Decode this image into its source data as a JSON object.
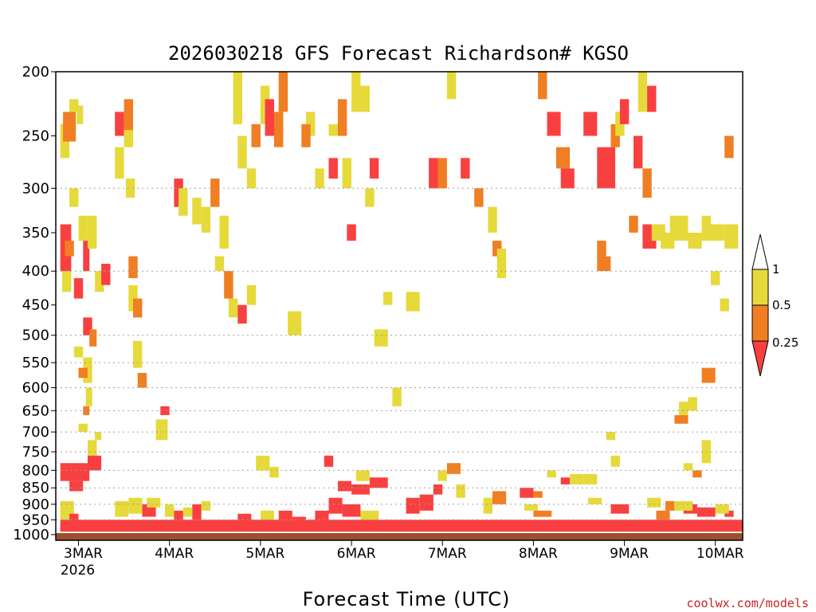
{
  "colors": {
    "ri_0_025": "#f84040",
    "ri_025_05": "#f07e22",
    "ri_05_1": "#e6d93a",
    "ground": "#9a4f2e",
    "grid": "#a0a0a0"
  },
  "chart_data": {
    "type": "heatmap",
    "title": "2026030218 GFS Forecast Richardson# KGSO",
    "xlabel": "Forecast Time (UTC)",
    "ylabel": "",
    "source_label": "coolwx.com/models",
    "x_ticks": [
      {
        "label": "3MAR",
        "sub": "2026",
        "day": 3
      },
      {
        "label": "4MAR",
        "sub": "",
        "day": 4
      },
      {
        "label": "5MAR",
        "sub": "",
        "day": 5
      },
      {
        "label": "6MAR",
        "sub": "",
        "day": 6
      },
      {
        "label": "7MAR",
        "sub": "",
        "day": 7
      },
      {
        "label": "8MAR",
        "sub": "",
        "day": 8
      },
      {
        "label": "9MAR",
        "sub": "",
        "day": 9
      },
      {
        "label": "10MAR",
        "sub": "",
        "day": 10
      }
    ],
    "x_range_days": [
      2.75,
      10.3
    ],
    "y_scale": "log",
    "y_range_hpa": [
      1020,
      200
    ],
    "y_ticks": [
      200,
      250,
      300,
      350,
      400,
      450,
      500,
      550,
      600,
      650,
      700,
      750,
      800,
      850,
      900,
      950,
      1000
    ],
    "grid_levels": [
      300,
      400,
      500,
      550,
      600,
      650,
      700,
      750,
      800,
      850,
      900,
      950
    ],
    "legend": {
      "bins": [
        {
          "range": "0-0.25",
          "color": "#f84040"
        },
        {
          "range": "0.25-0.5",
          "color": "#f07e22"
        },
        {
          "range": "0.5-1",
          "color": "#e6d93a"
        }
      ],
      "labels": [
        "1",
        "0.5",
        "0.25"
      ]
    },
    "cells": [
      [
        2.8,
        2.92,
        340,
        400,
        "r"
      ],
      [
        2.8,
        2.9,
        240,
        270,
        "y"
      ],
      [
        2.82,
        2.92,
        400,
        430,
        "y"
      ],
      [
        2.85,
        2.95,
        360,
        380,
        "o"
      ],
      [
        2.9,
        3.0,
        300,
        320,
        "y"
      ],
      [
        2.95,
        3.05,
        410,
        440,
        "r"
      ],
      [
        3.0,
        3.1,
        330,
        360,
        "y"
      ],
      [
        3.05,
        3.12,
        360,
        400,
        "r"
      ],
      [
        2.83,
        2.97,
        230,
        255,
        "o"
      ],
      [
        2.9,
        3.0,
        220,
        230,
        "y"
      ],
      [
        2.98,
        3.05,
        225,
        240,
        "y"
      ],
      [
        3.1,
        3.2,
        330,
        370,
        "y"
      ],
      [
        3.05,
        3.15,
        470,
        500,
        "r"
      ],
      [
        3.12,
        3.2,
        490,
        520,
        "o"
      ],
      [
        3.05,
        3.15,
        540,
        590,
        "y"
      ],
      [
        3.05,
        3.12,
        640,
        660,
        "o"
      ],
      [
        3.08,
        3.15,
        600,
        640,
        "y"
      ],
      [
        3.0,
        3.1,
        680,
        700,
        "y"
      ],
      [
        2.8,
        3.12,
        780,
        830,
        "r"
      ],
      [
        2.9,
        3.05,
        830,
        860,
        "r"
      ],
      [
        3.1,
        3.2,
        750,
        800,
        "r"
      ],
      [
        3.15,
        3.25,
        760,
        800,
        "r"
      ],
      [
        2.8,
        2.95,
        890,
        960,
        "y"
      ],
      [
        2.9,
        3.0,
        930,
        960,
        "r"
      ],
      [
        3.1,
        3.2,
        720,
        760,
        "y"
      ],
      [
        3.18,
        3.25,
        700,
        720,
        "y"
      ],
      [
        3.4,
        3.5,
        230,
        250,
        "r"
      ],
      [
        3.5,
        3.6,
        240,
        260,
        "y"
      ],
      [
        3.4,
        3.5,
        260,
        290,
        "y"
      ],
      [
        3.52,
        3.62,
        290,
        310,
        "y"
      ],
      [
        3.55,
        3.65,
        380,
        410,
        "o"
      ],
      [
        3.55,
        3.65,
        420,
        460,
        "y"
      ],
      [
        3.6,
        3.7,
        440,
        470,
        "o"
      ],
      [
        3.6,
        3.7,
        510,
        560,
        "y"
      ],
      [
        3.65,
        3.75,
        570,
        600,
        "o"
      ],
      [
        3.4,
        3.55,
        890,
        940,
        "y"
      ],
      [
        3.55,
        3.7,
        880,
        930,
        "y"
      ],
      [
        3.7,
        3.85,
        900,
        940,
        "r"
      ],
      [
        3.75,
        3.9,
        880,
        910,
        "y"
      ],
      [
        3.85,
        3.98,
        670,
        720,
        "y"
      ],
      [
        3.9,
        4.0,
        640,
        660,
        "r"
      ],
      [
        3.95,
        4.05,
        900,
        940,
        "y"
      ],
      [
        4.05,
        4.15,
        920,
        950,
        "r"
      ],
      [
        4.15,
        4.25,
        910,
        940,
        "y"
      ],
      [
        4.25,
        4.35,
        900,
        950,
        "r"
      ],
      [
        4.35,
        4.45,
        890,
        920,
        "y"
      ],
      [
        4.05,
        4.15,
        290,
        320,
        "r"
      ],
      [
        4.1,
        4.2,
        300,
        330,
        "y"
      ],
      [
        4.25,
        4.35,
        310,
        340,
        "y"
      ],
      [
        4.35,
        4.45,
        320,
        350,
        "y"
      ],
      [
        4.45,
        4.55,
        290,
        320,
        "o"
      ],
      [
        4.55,
        4.65,
        330,
        370,
        "y"
      ],
      [
        4.65,
        4.75,
        440,
        470,
        "y"
      ],
      [
        4.75,
        4.85,
        450,
        480,
        "r"
      ],
      [
        4.85,
        4.95,
        420,
        450,
        "y"
      ],
      [
        4.75,
        4.85,
        250,
        280,
        "y"
      ],
      [
        4.7,
        4.8,
        200,
        240,
        "y"
      ],
      [
        4.9,
        5.0,
        240,
        260,
        "o"
      ],
      [
        5.0,
        5.1,
        210,
        240,
        "y"
      ],
      [
        5.05,
        5.15,
        220,
        250,
        "r"
      ],
      [
        5.15,
        5.25,
        230,
        260,
        "o"
      ],
      [
        5.2,
        5.3,
        200,
        230,
        "o"
      ],
      [
        4.95,
        5.1,
        760,
        800,
        "y"
      ],
      [
        5.1,
        5.2,
        790,
        820,
        "y"
      ],
      [
        4.75,
        4.9,
        930,
        960,
        "r"
      ],
      [
        5.0,
        5.15,
        920,
        950,
        "y"
      ],
      [
        5.2,
        5.35,
        920,
        950,
        "r"
      ],
      [
        5.35,
        5.5,
        940,
        970,
        "r"
      ],
      [
        5.3,
        5.45,
        460,
        500,
        "y"
      ],
      [
        5.5,
        5.6,
        230,
        250,
        "y"
      ],
      [
        5.6,
        5.7,
        280,
        300,
        "y"
      ],
      [
        5.75,
        5.85,
        240,
        250,
        "y"
      ],
      [
        5.75,
        5.85,
        270,
        290,
        "r"
      ],
      [
        5.85,
        5.95,
        220,
        250,
        "o"
      ],
      [
        5.9,
        6.0,
        270,
        300,
        "y"
      ],
      [
        5.95,
        6.05,
        340,
        360,
        "r"
      ],
      [
        6.0,
        6.1,
        200,
        230,
        "y"
      ],
      [
        6.1,
        6.2,
        210,
        230,
        "y"
      ],
      [
        6.2,
        6.3,
        270,
        290,
        "r"
      ],
      [
        6.15,
        6.25,
        300,
        320,
        "y"
      ],
      [
        5.85,
        6.0,
        830,
        860,
        "r"
      ],
      [
        6.0,
        6.2,
        840,
        870,
        "r"
      ],
      [
        6.2,
        6.4,
        820,
        850,
        "r"
      ],
      [
        6.05,
        6.2,
        800,
        830,
        "y"
      ],
      [
        5.75,
        5.9,
        880,
        930,
        "r"
      ],
      [
        5.9,
        6.1,
        900,
        940,
        "r"
      ],
      [
        6.1,
        6.3,
        920,
        950,
        "y"
      ],
      [
        5.6,
        5.75,
        920,
        960,
        "r"
      ],
      [
        5.7,
        5.8,
        760,
        790,
        "r"
      ],
      [
        6.25,
        6.4,
        490,
        520,
        "y"
      ],
      [
        6.35,
        6.45,
        430,
        450,
        "y"
      ],
      [
        6.6,
        6.75,
        430,
        460,
        "y"
      ],
      [
        6.85,
        6.95,
        270,
        300,
        "r"
      ],
      [
        6.95,
        7.05,
        270,
        300,
        "o"
      ],
      [
        7.05,
        7.15,
        200,
        220,
        "y"
      ],
      [
        7.2,
        7.3,
        270,
        290,
        "r"
      ],
      [
        6.6,
        6.75,
        880,
        930,
        "r"
      ],
      [
        6.75,
        6.9,
        870,
        920,
        "r"
      ],
      [
        6.9,
        7.0,
        840,
        870,
        "r"
      ],
      [
        6.95,
        7.05,
        800,
        830,
        "y"
      ],
      [
        7.05,
        7.2,
        780,
        810,
        "o"
      ],
      [
        7.15,
        7.25,
        840,
        880,
        "y"
      ],
      [
        7.45,
        7.55,
        880,
        930,
        "y"
      ],
      [
        7.55,
        7.7,
        860,
        900,
        "o"
      ],
      [
        7.5,
        7.6,
        320,
        350,
        "y"
      ],
      [
        7.55,
        7.65,
        360,
        380,
        "o"
      ],
      [
        7.6,
        7.7,
        370,
        410,
        "y"
      ],
      [
        7.85,
        8.0,
        850,
        880,
        "r"
      ],
      [
        8.0,
        8.1,
        860,
        880,
        "o"
      ],
      [
        8.15,
        8.25,
        800,
        820,
        "y"
      ],
      [
        8.3,
        8.4,
        820,
        840,
        "r"
      ],
      [
        8.4,
        8.55,
        810,
        840,
        "y"
      ],
      [
        8.55,
        8.7,
        810,
        840,
        "y"
      ],
      [
        8.15,
        8.3,
        230,
        250,
        "r"
      ],
      [
        8.05,
        8.15,
        200,
        220,
        "o"
      ],
      [
        8.25,
        8.4,
        260,
        280,
        "o"
      ],
      [
        8.3,
        8.45,
        280,
        300,
        "r"
      ],
      [
        8.55,
        8.7,
        230,
        250,
        "r"
      ],
      [
        8.7,
        8.9,
        260,
        300,
        "r"
      ],
      [
        8.85,
        8.95,
        240,
        260,
        "o"
      ],
      [
        8.9,
        9.0,
        230,
        250,
        "y"
      ],
      [
        8.95,
        9.05,
        220,
        240,
        "r"
      ],
      [
        9.1,
        9.2,
        250,
        280,
        "r"
      ],
      [
        9.2,
        9.3,
        280,
        310,
        "o"
      ],
      [
        9.05,
        9.15,
        330,
        350,
        "o"
      ],
      [
        9.2,
        9.35,
        340,
        370,
        "r"
      ],
      [
        9.3,
        9.45,
        340,
        360,
        "y"
      ],
      [
        9.4,
        9.55,
        350,
        370,
        "y"
      ],
      [
        9.5,
        9.7,
        330,
        360,
        "y"
      ],
      [
        9.7,
        9.85,
        350,
        370,
        "y"
      ],
      [
        9.85,
        9.95,
        330,
        360,
        "y"
      ],
      [
        9.95,
        10.1,
        340,
        360,
        "y"
      ],
      [
        10.1,
        10.25,
        340,
        370,
        "y"
      ],
      [
        10.1,
        10.2,
        250,
        270,
        "o"
      ],
      [
        9.95,
        10.05,
        400,
        420,
        "y"
      ],
      [
        10.05,
        10.15,
        440,
        460,
        "y"
      ],
      [
        9.65,
        9.75,
        780,
        800,
        "y"
      ],
      [
        9.75,
        9.85,
        800,
        820,
        "o"
      ],
      [
        9.85,
        9.95,
        720,
        780,
        "y"
      ],
      [
        9.85,
        10.0,
        560,
        590,
        "o"
      ],
      [
        9.7,
        9.8,
        620,
        650,
        "y"
      ],
      [
        9.55,
        9.7,
        660,
        680,
        "o"
      ],
      [
        9.6,
        9.7,
        630,
        660,
        "y"
      ],
      [
        10.1,
        10.2,
        920,
        940,
        "r"
      ],
      [
        9.15,
        9.25,
        200,
        230,
        "y"
      ],
      [
        9.25,
        9.35,
        210,
        230,
        "r"
      ],
      [
        8.7,
        8.85,
        380,
        400,
        "o"
      ],
      [
        8.7,
        8.8,
        360,
        380,
        "o"
      ],
      [
        8.85,
        8.95,
        760,
        790,
        "y"
      ],
      [
        8.8,
        8.9,
        700,
        720,
        "y"
      ],
      [
        9.45,
        9.55,
        890,
        920,
        "o"
      ],
      [
        9.65,
        9.8,
        900,
        930,
        "r"
      ],
      [
        2.95,
        3.05,
        520,
        540,
        "y"
      ],
      [
        3.0,
        3.1,
        560,
        580,
        "o"
      ],
      [
        3.18,
        3.28,
        400,
        430,
        "y"
      ],
      [
        3.25,
        3.35,
        390,
        420,
        "r"
      ],
      [
        3.5,
        3.6,
        220,
        245,
        "o"
      ],
      [
        4.5,
        4.6,
        380,
        400,
        "y"
      ],
      [
        4.6,
        4.7,
        400,
        440,
        "o"
      ],
      [
        4.85,
        4.95,
        280,
        300,
        "y"
      ],
      [
        5.45,
        5.55,
        240,
        260,
        "o"
      ],
      [
        6.45,
        6.55,
        600,
        640,
        "y"
      ],
      [
        7.35,
        7.45,
        300,
        320,
        "o"
      ],
      [
        7.9,
        8.05,
        900,
        920,
        "y"
      ],
      [
        8.0,
        8.2,
        920,
        940,
        "o"
      ],
      [
        8.6,
        8.75,
        880,
        900,
        "y"
      ],
      [
        8.85,
        9.05,
        900,
        930,
        "r"
      ],
      [
        9.25,
        9.4,
        880,
        910,
        "y"
      ],
      [
        9.35,
        9.5,
        920,
        950,
        "o"
      ],
      [
        9.55,
        9.75,
        890,
        920,
        "y"
      ],
      [
        9.8,
        10.0,
        910,
        940,
        "r"
      ],
      [
        10.0,
        10.15,
        900,
        930,
        "y"
      ],
      [
        2.8,
        10.3,
        950,
        985,
        "r"
      ],
      [
        2.8,
        10.3,
        965,
        990,
        "r"
      ]
    ]
  }
}
